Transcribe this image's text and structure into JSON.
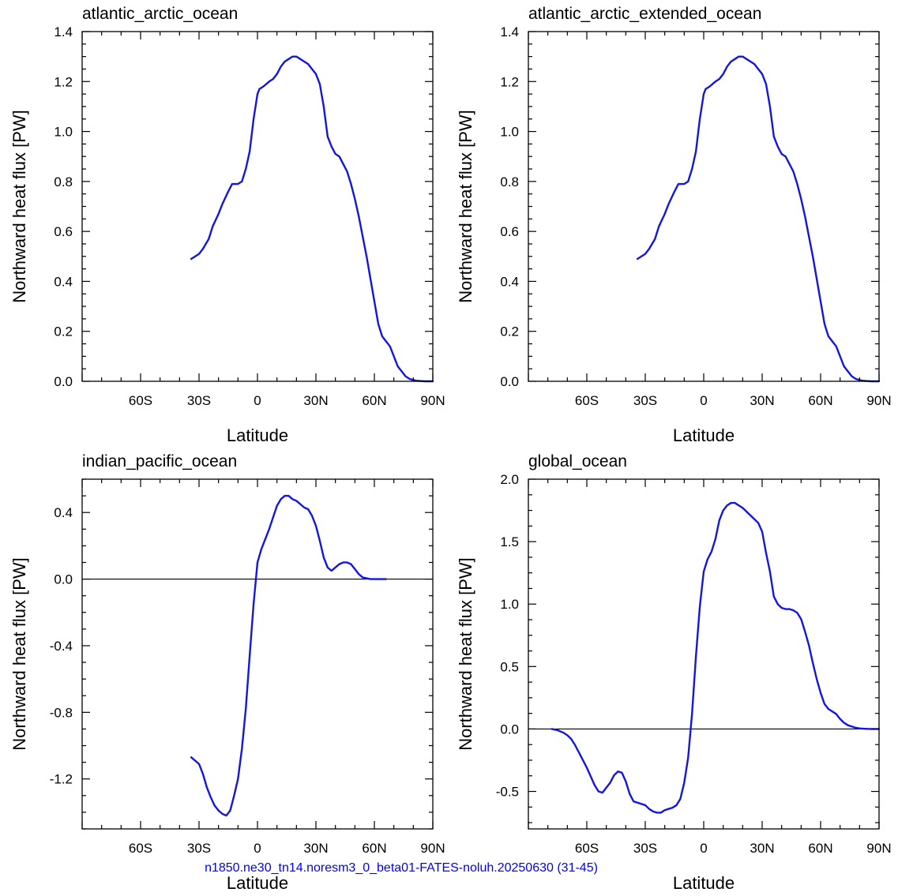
{
  "footer": "n1850.ne30_tn14.noresm3_0_beta01-FATES-noluh.20250630 (31-45)",
  "colors": {
    "line": "#1414e6",
    "zero_line": "#000000"
  },
  "chart_data": [
    {
      "type": "line",
      "title": "atlantic_arctic_ocean",
      "xlabel": "Latitude",
      "ylabel": "Northward heat flux [PW]",
      "xlim": [
        -90,
        90
      ],
      "ylim": [
        0,
        1.4
      ],
      "xticks": [
        -60,
        -30,
        0,
        30,
        60,
        90
      ],
      "xticklabels": [
        "60S",
        "30S",
        "0",
        "30N",
        "60N",
        "90N"
      ],
      "yticks": [
        0,
        0.2,
        0.4,
        0.6,
        0.8,
        1.0,
        1.2,
        1.4
      ],
      "yticklabels": [
        "0.0",
        "0.2",
        "0.4",
        "0.6",
        "0.8",
        "1.0",
        "1.2",
        "1.4"
      ],
      "zero_line": false,
      "series": [
        {
          "x": [
            -34,
            -30,
            -28,
            -25,
            -23,
            -20,
            -18,
            -15,
            -13,
            -10,
            -8,
            -6,
            -4,
            -2,
            0,
            1,
            3,
            6,
            8,
            10,
            12,
            14,
            16,
            18,
            20,
            22,
            24,
            26,
            28,
            30,
            32,
            34,
            36,
            38,
            40,
            42,
            44,
            46,
            48,
            50,
            52,
            54,
            56,
            58,
            60,
            62,
            64,
            66,
            68,
            70,
            72,
            74,
            76,
            78,
            80,
            82,
            84,
            86,
            88,
            90
          ],
          "y": [
            0.49,
            0.51,
            0.53,
            0.57,
            0.62,
            0.67,
            0.71,
            0.76,
            0.79,
            0.79,
            0.8,
            0.85,
            0.92,
            1.05,
            1.15,
            1.17,
            1.18,
            1.2,
            1.21,
            1.23,
            1.26,
            1.28,
            1.29,
            1.3,
            1.3,
            1.29,
            1.28,
            1.27,
            1.25,
            1.23,
            1.19,
            1.1,
            0.98,
            0.94,
            0.91,
            0.9,
            0.87,
            0.84,
            0.79,
            0.73,
            0.66,
            0.58,
            0.5,
            0.41,
            0.32,
            0.23,
            0.18,
            0.16,
            0.14,
            0.1,
            0.06,
            0.04,
            0.02,
            0.01,
            0.005,
            0.002,
            0.001,
            0.0,
            0.0,
            0.0
          ]
        }
      ]
    },
    {
      "type": "line",
      "title": "atlantic_arctic_extended_ocean",
      "xlabel": "Latitude",
      "ylabel": "Northward heat flux [PW]",
      "xlim": [
        -90,
        90
      ],
      "ylim": [
        0,
        1.4
      ],
      "xticks": [
        -60,
        -30,
        0,
        30,
        60,
        90
      ],
      "xticklabels": [
        "60S",
        "30S",
        "0",
        "30N",
        "60N",
        "90N"
      ],
      "yticks": [
        0,
        0.2,
        0.4,
        0.6,
        0.8,
        1.0,
        1.2,
        1.4
      ],
      "yticklabels": [
        "0.0",
        "0.2",
        "0.4",
        "0.6",
        "0.8",
        "1.0",
        "1.2",
        "1.4"
      ],
      "zero_line": false,
      "series": [
        {
          "x": [
            -34,
            -30,
            -28,
            -25,
            -23,
            -20,
            -18,
            -15,
            -13,
            -10,
            -8,
            -6,
            -4,
            -2,
            0,
            1,
            3,
            6,
            8,
            10,
            12,
            14,
            16,
            18,
            20,
            22,
            24,
            26,
            28,
            30,
            32,
            34,
            36,
            38,
            40,
            42,
            44,
            46,
            48,
            50,
            52,
            54,
            56,
            58,
            60,
            62,
            64,
            66,
            68,
            70,
            72,
            74,
            76,
            78,
            80,
            82,
            84,
            86,
            88,
            90
          ],
          "y": [
            0.49,
            0.51,
            0.53,
            0.57,
            0.62,
            0.67,
            0.71,
            0.76,
            0.79,
            0.79,
            0.8,
            0.85,
            0.92,
            1.05,
            1.15,
            1.17,
            1.18,
            1.2,
            1.21,
            1.23,
            1.26,
            1.28,
            1.29,
            1.3,
            1.3,
            1.29,
            1.28,
            1.27,
            1.25,
            1.23,
            1.19,
            1.1,
            0.98,
            0.94,
            0.91,
            0.9,
            0.87,
            0.84,
            0.79,
            0.73,
            0.66,
            0.58,
            0.5,
            0.41,
            0.32,
            0.23,
            0.18,
            0.16,
            0.14,
            0.1,
            0.06,
            0.04,
            0.02,
            0.01,
            0.005,
            0.002,
            0.001,
            0.0,
            0.0,
            0.0
          ]
        }
      ]
    },
    {
      "type": "line",
      "title": "indian_pacific_ocean",
      "xlabel": "Latitude",
      "ylabel": "Northward heat flux [PW]",
      "xlim": [
        -90,
        90
      ],
      "ylim": [
        -1.5,
        0.6
      ],
      "xticks": [
        -60,
        -30,
        0,
        30,
        60,
        90
      ],
      "xticklabels": [
        "60S",
        "30S",
        "0",
        "30N",
        "60N",
        "90N"
      ],
      "yticks": [
        -1.2,
        -0.8,
        -0.4,
        0.0,
        0.4
      ],
      "yticklabels": [
        "-1.2",
        "-0.8",
        "-0.4",
        "0.0",
        "0.4"
      ],
      "zero_line": true,
      "series": [
        {
          "x": [
            -34,
            -30,
            -28,
            -26,
            -24,
            -22,
            -20,
            -18,
            -16,
            -14,
            -12,
            -10,
            -8,
            -6,
            -4,
            -2,
            0,
            2,
            4,
            6,
            8,
            10,
            12,
            14,
            16,
            18,
            20,
            22,
            24,
            26,
            28,
            30,
            32,
            34,
            36,
            38,
            40,
            42,
            44,
            46,
            48,
            50,
            52,
            54,
            56,
            58,
            60,
            62,
            64,
            66
          ],
          "y": [
            -1.07,
            -1.11,
            -1.17,
            -1.25,
            -1.31,
            -1.36,
            -1.39,
            -1.41,
            -1.42,
            -1.39,
            -1.3,
            -1.2,
            -1.02,
            -0.78,
            -0.46,
            -0.15,
            0.1,
            0.18,
            0.24,
            0.3,
            0.37,
            0.44,
            0.48,
            0.5,
            0.5,
            0.48,
            0.47,
            0.45,
            0.43,
            0.42,
            0.38,
            0.32,
            0.23,
            0.13,
            0.07,
            0.05,
            0.07,
            0.09,
            0.1,
            0.1,
            0.09,
            0.06,
            0.03,
            0.01,
            0.005,
            0.0,
            0.0,
            0.0,
            0.0,
            0.0
          ]
        }
      ]
    },
    {
      "type": "line",
      "title": "global_ocean",
      "xlabel": "Latitude",
      "ylabel": "Northward heat flux [PW]",
      "xlim": [
        -90,
        90
      ],
      "ylim": [
        -0.8,
        2.0
      ],
      "xticks": [
        -60,
        -30,
        0,
        30,
        60,
        90
      ],
      "xticklabels": [
        "60S",
        "30S",
        "0",
        "30N",
        "60N",
        "90N"
      ],
      "yticks": [
        -0.5,
        0.0,
        0.5,
        1.0,
        1.5,
        2.0
      ],
      "yticklabels": [
        "-0.5",
        "0.0",
        "0.5",
        "1.0",
        "1.5",
        "2.0"
      ],
      "zero_line": true,
      "series": [
        {
          "x": [
            -78,
            -75,
            -72,
            -70,
            -68,
            -66,
            -64,
            -62,
            -60,
            -58,
            -56,
            -54,
            -52,
            -50,
            -48,
            -46,
            -44,
            -42,
            -40,
            -38,
            -36,
            -34,
            -32,
            -30,
            -28,
            -26,
            -24,
            -22,
            -20,
            -18,
            -16,
            -14,
            -12,
            -10,
            -8,
            -6,
            -4,
            -2,
            0,
            2,
            4,
            6,
            8,
            10,
            12,
            14,
            16,
            18,
            20,
            22,
            24,
            26,
            28,
            30,
            32,
            34,
            36,
            38,
            40,
            42,
            44,
            46,
            48,
            50,
            52,
            54,
            56,
            58,
            60,
            62,
            64,
            66,
            68,
            70,
            72,
            74,
            76,
            78,
            80,
            82,
            84,
            86,
            88,
            90
          ],
          "y": [
            0.0,
            -0.01,
            -0.03,
            -0.05,
            -0.08,
            -0.13,
            -0.19,
            -0.25,
            -0.31,
            -0.38,
            -0.45,
            -0.5,
            -0.51,
            -0.47,
            -0.43,
            -0.37,
            -0.34,
            -0.35,
            -0.42,
            -0.52,
            -0.58,
            -0.59,
            -0.6,
            -0.61,
            -0.64,
            -0.66,
            -0.67,
            -0.67,
            -0.65,
            -0.64,
            -0.63,
            -0.61,
            -0.56,
            -0.43,
            -0.23,
            0.12,
            0.58,
            0.98,
            1.26,
            1.36,
            1.42,
            1.52,
            1.67,
            1.75,
            1.79,
            1.81,
            1.81,
            1.79,
            1.77,
            1.74,
            1.71,
            1.68,
            1.65,
            1.58,
            1.41,
            1.26,
            1.06,
            1.0,
            0.97,
            0.96,
            0.96,
            0.95,
            0.93,
            0.88,
            0.78,
            0.67,
            0.53,
            0.4,
            0.29,
            0.2,
            0.16,
            0.14,
            0.12,
            0.08,
            0.05,
            0.03,
            0.02,
            0.01,
            0.005,
            0.002,
            0.001,
            0.0,
            0.0,
            0.0
          ]
        }
      ]
    }
  ]
}
